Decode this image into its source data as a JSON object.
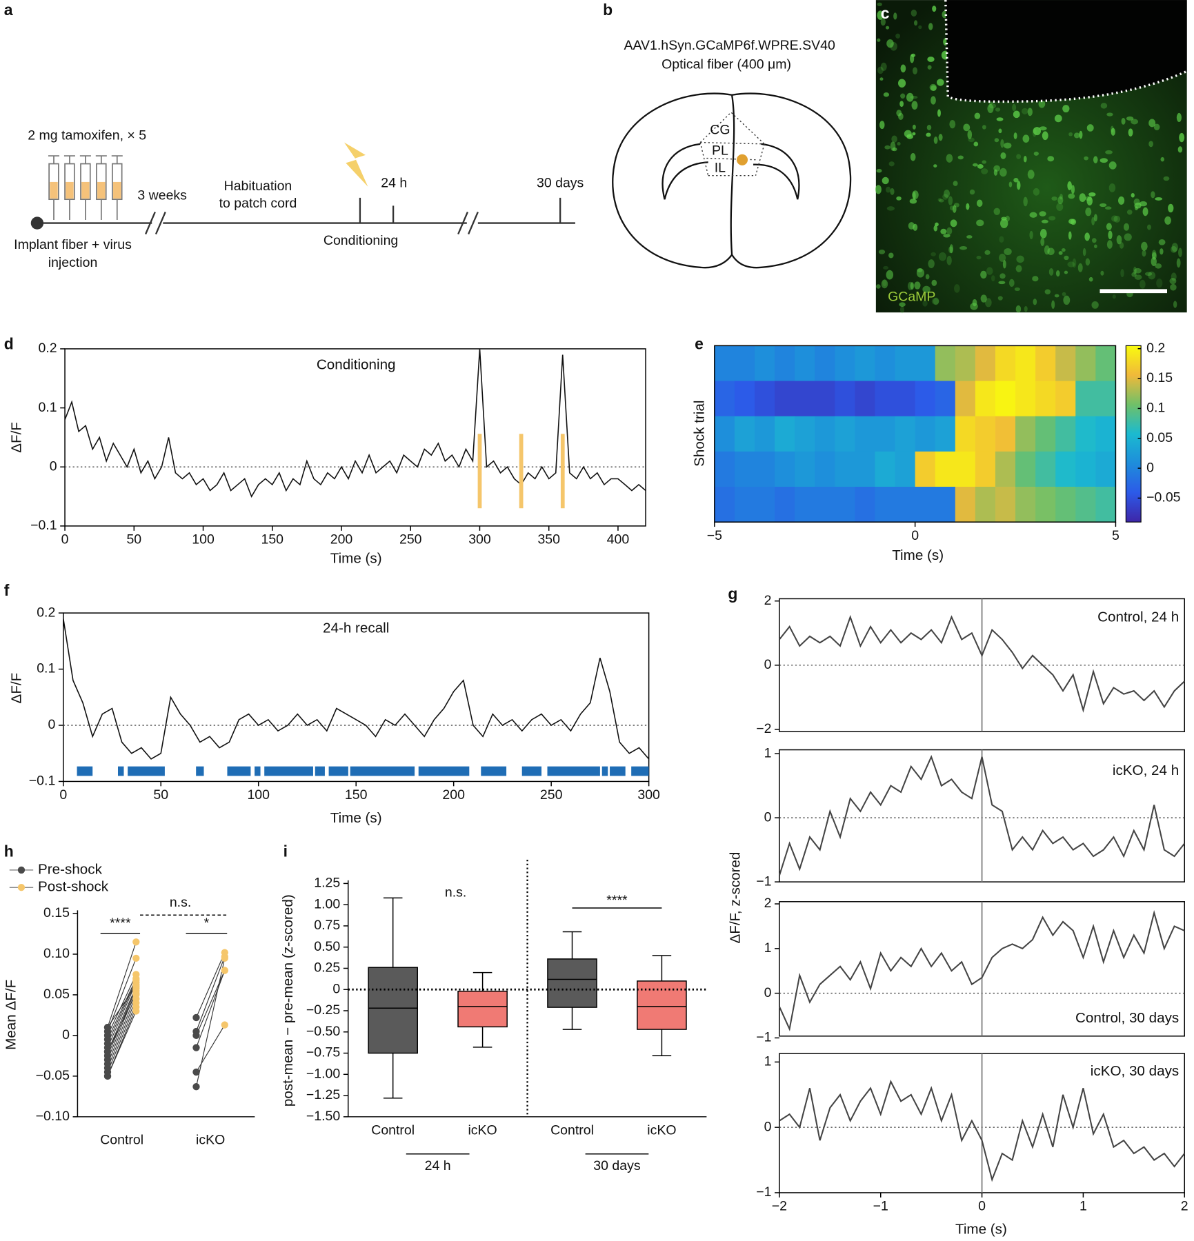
{
  "panel_a": {
    "label": "a",
    "dose": "2 mg tamoxifen, × 5",
    "gap": "3 weeks",
    "habituation": [
      "Habituation",
      "to patch cord"
    ],
    "t1": "24 h",
    "t2": "30 days",
    "conditioning": "Conditioning",
    "implant": [
      "Implant fiber + virus",
      "injection"
    ]
  },
  "panel_b": {
    "label": "b",
    "virus": "AAV1.hSyn.GCaMP6f.WPRE.SV40",
    "fiber": "Optical fiber (400 μm)",
    "regions": [
      "CG",
      "PL",
      "IL"
    ]
  },
  "panel_c": {
    "label": "c",
    "stain": "GCaMP"
  },
  "chart_data": [
    {
      "label": "d",
      "type": "line",
      "title": "Conditioning",
      "xlabel": "Time (s)",
      "ylabel": "ΔF/F",
      "x": [
        0,
        5,
        10,
        15,
        20,
        25,
        30,
        35,
        40,
        45,
        50,
        55,
        60,
        65,
        70,
        75,
        80,
        85,
        90,
        95,
        100,
        105,
        110,
        115,
        120,
        125,
        130,
        135,
        140,
        145,
        150,
        155,
        160,
        165,
        170,
        175,
        180,
        185,
        190,
        195,
        200,
        205,
        210,
        215,
        220,
        225,
        230,
        235,
        240,
        245,
        250,
        255,
        260,
        265,
        270,
        275,
        280,
        285,
        290,
        295,
        300,
        305,
        310,
        315,
        320,
        325,
        330,
        335,
        340,
        345,
        350,
        355,
        360,
        365,
        370,
        375,
        380,
        385,
        390,
        395,
        400,
        405,
        410,
        415,
        420
      ],
      "series": [
        {
          "color": "#111111",
          "values": [
            0.08,
            0.11,
            0.06,
            0.07,
            0.03,
            0.05,
            0.01,
            0.04,
            0.02,
            0,
            0.03,
            -0.01,
            0.01,
            -0.02,
            0,
            0.05,
            -0.01,
            -0.02,
            -0.01,
            -0.03,
            -0.02,
            -0.04,
            -0.03,
            -0.01,
            -0.04,
            -0.03,
            -0.02,
            -0.05,
            -0.03,
            -0.02,
            -0.03,
            -0.01,
            -0.04,
            -0.02,
            -0.03,
            0.01,
            -0.02,
            -0.03,
            -0.01,
            -0.02,
            0,
            -0.02,
            0.01,
            -0.01,
            0.02,
            -0.01,
            0,
            0.01,
            -0.01,
            0.02,
            0.01,
            0,
            0.03,
            0.02,
            0.04,
            0.01,
            0.02,
            0,
            0.03,
            0.01,
            0.2,
            0,
            0.01,
            -0.01,
            0,
            -0.02,
            -0.03,
            -0.01,
            -0.02,
            0,
            -0.02,
            -0.01,
            0.19,
            -0.01,
            -0.02,
            0,
            -0.02,
            -0.01,
            -0.03,
            -0.02,
            -0.02,
            -0.03,
            -0.04,
            -0.03,
            -0.04
          ]
        }
      ],
      "xlim": [
        0,
        420
      ],
      "ylim": [
        -0.1,
        0.2
      ],
      "xticks": [
        0,
        50,
        100,
        150,
        200,
        250,
        300,
        350,
        400
      ],
      "yticks": [
        {
          "value": -0.1,
          "label": "−0.1"
        },
        0,
        0.1,
        0.2
      ],
      "baseline": 0,
      "shocks": [
        300,
        330,
        360
      ],
      "shock_color": "#f5c66b"
    },
    {
      "label": "e",
      "type": "heatmap",
      "xlabel": "Time (s)",
      "ylabel": "Shock trial",
      "xlim": [
        -5,
        5
      ],
      "xticks": [
        {
          "value": -5,
          "label": "−5"
        },
        0,
        5
      ],
      "rows": [
        [
          0,
          0,
          0.01,
          0,
          0.01,
          0,
          0.01,
          0.02,
          0.01,
          0.02,
          0.02,
          0.12,
          0.13,
          0.15,
          0.18,
          0.19,
          0.17,
          0.14,
          0.12,
          0.1
        ],
        [
          -0.03,
          -0.04,
          -0.05,
          -0.06,
          -0.06,
          -0.06,
          -0.05,
          -0.06,
          -0.05,
          -0.05,
          -0.04,
          -0.03,
          0.15,
          0.19,
          0.2,
          0.19,
          0.18,
          0.17,
          0.08,
          0.08
        ],
        [
          0.01,
          0.03,
          0.02,
          0.04,
          0.03,
          0.02,
          0.03,
          0.02,
          0.02,
          0.03,
          0.02,
          0.03,
          0.18,
          0.17,
          0.16,
          0.12,
          0.1,
          0.08,
          0.06,
          0.05
        ],
        [
          -0.01,
          0,
          0,
          0.01,
          0.02,
          0.01,
          0.02,
          0.02,
          0.04,
          0.03,
          0.17,
          0.19,
          0.19,
          0.17,
          0.13,
          0.1,
          0.08,
          0.06,
          0.05,
          0.04
        ],
        [
          -0.02,
          -0.01,
          -0.01,
          -0.02,
          -0.01,
          -0.01,
          -0.01,
          -0.02,
          -0.01,
          -0.01,
          -0.01,
          -0.01,
          0.15,
          0.13,
          0.14,
          0.12,
          0.11,
          0.1,
          0.09,
          0.08
        ]
      ],
      "clim": [
        -0.09,
        0.205
      ],
      "cticks": [
        {
          "value": -0.05,
          "label": "−0.05"
        },
        0,
        0.05,
        0.1,
        0.15,
        0.2
      ],
      "colormap": [
        "#3e26a8",
        "#2c5ae8",
        "#1e8ddb",
        "#1bbad0",
        "#70c068",
        "#f0b93a",
        "#f9fb0e"
      ]
    },
    {
      "label": "f",
      "type": "line",
      "title": "24-h recall",
      "xlabel": "Time (s)",
      "ylabel": "ΔF/F",
      "x": [
        0,
        5,
        10,
        15,
        20,
        25,
        30,
        35,
        40,
        45,
        50,
        55,
        60,
        65,
        70,
        75,
        80,
        85,
        90,
        95,
        100,
        105,
        110,
        115,
        120,
        125,
        130,
        135,
        140,
        145,
        150,
        155,
        160,
        165,
        170,
        175,
        180,
        185,
        190,
        195,
        200,
        205,
        210,
        215,
        220,
        225,
        230,
        235,
        240,
        245,
        250,
        255,
        260,
        265,
        270,
        275,
        280,
        285,
        290,
        295,
        300
      ],
      "series": [
        {
          "color": "#111111",
          "values": [
            0.19,
            0.08,
            0.04,
            -0.02,
            0.02,
            0.03,
            -0.03,
            -0.05,
            -0.04,
            -0.06,
            -0.05,
            0.05,
            0.02,
            0,
            -0.03,
            -0.02,
            -0.04,
            -0.03,
            0.01,
            0.02,
            0,
            0.01,
            -0.01,
            0,
            0.02,
            0,
            0.01,
            -0.01,
            0.03,
            0.02,
            0.01,
            0,
            -0.02,
            0.01,
            0,
            0.02,
            0,
            -0.02,
            0.01,
            0.03,
            0.06,
            0.08,
            0,
            -0.02,
            0.02,
            0,
            0.01,
            -0.01,
            0.01,
            0.02,
            0,
            0.01,
            -0.01,
            0.02,
            0.04,
            0.12,
            0.06,
            -0.03,
            -0.05,
            -0.04,
            -0.06
          ]
        }
      ],
      "xlim": [
        0,
        300
      ],
      "ylim": [
        -0.1,
        0.2
      ],
      "xticks": [
        0,
        50,
        100,
        150,
        200,
        250,
        300
      ],
      "yticks": [
        {
          "value": -0.1,
          "label": "−0.1"
        },
        0,
        0.1,
        0.2
      ],
      "baseline": 0,
      "freezing": [
        [
          7,
          15
        ],
        [
          28,
          31
        ],
        [
          33,
          52
        ],
        [
          68,
          72
        ],
        [
          84,
          96
        ],
        [
          98,
          101
        ],
        [
          103,
          128
        ],
        [
          129,
          134
        ],
        [
          136,
          146
        ],
        [
          147,
          180
        ],
        [
          182,
          208
        ],
        [
          214,
          227
        ],
        [
          235,
          245
        ],
        [
          248,
          275
        ],
        [
          276,
          279
        ],
        [
          280,
          288
        ],
        [
          291,
          300
        ]
      ],
      "freezing_color": "#1f6db5"
    },
    {
      "label": "g",
      "type": "line-stack",
      "xlabel": "Time (s)",
      "ylabel": "ΔF/F, z-scored",
      "x": [
        -2,
        -1.9,
        -1.8,
        -1.7,
        -1.6,
        -1.5,
        -1.4,
        -1.3,
        -1.2,
        -1.1,
        -1,
        -0.9,
        -0.8,
        -0.7,
        -0.6,
        -0.5,
        -0.4,
        -0.3,
        -0.2,
        -0.1,
        0,
        0.1,
        0.2,
        0.3,
        0.4,
        0.5,
        0.6,
        0.7,
        0.8,
        0.9,
        1,
        1.1,
        1.2,
        1.3,
        1.4,
        1.5,
        1.6,
        1.7,
        1.8,
        1.9,
        2
      ],
      "xlim": [
        -2,
        2
      ],
      "xticks": [
        {
          "value": -2,
          "label": "−2"
        },
        {
          "value": -1,
          "label": "−1"
        },
        0,
        1,
        2
      ],
      "baseline": 0,
      "event_x": 0,
      "series": [
        {
          "name": "Control, 24 h",
          "color": "#444444",
          "ylim": [
            -2.07,
            2.07
          ],
          "yticks": [
            {
              "value": -2,
              "label": "−2"
            },
            0,
            2
          ],
          "values": [
            0.8,
            1.2,
            0.6,
            0.9,
            0.7,
            0.9,
            0.6,
            1.5,
            0.6,
            1.2,
            0.7,
            1.1,
            0.7,
            1.0,
            0.8,
            1.1,
            0.7,
            1.5,
            0.8,
            1.0,
            0.3,
            1.1,
            0.8,
            0.4,
            -0.1,
            0.3,
            0,
            -0.3,
            -0.8,
            -0.3,
            -1.4,
            -0.2,
            -1.2,
            -0.7,
            -0.9,
            -0.8,
            -1.1,
            -0.8,
            -1.3,
            -0.8,
            -0.5
          ]
        },
        {
          "name": "icKO, 24 h",
          "color": "#444444",
          "ylim": [
            -1,
            1.06
          ],
          "yticks": [
            {
              "value": -1,
              "label": "−1"
            },
            0,
            1
          ],
          "values": [
            -0.9,
            -0.4,
            -0.8,
            -0.3,
            -0.5,
            0.1,
            -0.3,
            0.3,
            0.1,
            0.4,
            0.2,
            0.5,
            0.4,
            0.8,
            0.6,
            0.95,
            0.5,
            0.6,
            0.4,
            0.3,
            0.95,
            0.2,
            0.1,
            -0.5,
            -0.3,
            -0.5,
            -0.2,
            -0.4,
            -0.3,
            -0.5,
            -0.4,
            -0.6,
            -0.5,
            -0.3,
            -0.6,
            -0.2,
            -0.5,
            0.2,
            -0.5,
            -0.6,
            -0.4
          ]
        },
        {
          "name": "Control, 30 days",
          "color": "#444444",
          "ylim": [
            -0.96,
            2.05
          ],
          "yticks": [
            {
              "value": -1,
              "label": "−1"
            },
            0,
            1,
            2
          ],
          "values": [
            -0.3,
            -0.8,
            0.4,
            -0.2,
            0.2,
            0.4,
            0.6,
            0.3,
            0.7,
            0.1,
            0.9,
            0.5,
            0.8,
            0.6,
            1.0,
            0.6,
            0.9,
            0.5,
            0.7,
            0.2,
            0.35,
            0.8,
            1.0,
            1.1,
            1.0,
            1.2,
            1.7,
            1.3,
            1.6,
            1.4,
            0.8,
            1.5,
            0.7,
            1.4,
            0.8,
            1.3,
            0.9,
            1.8,
            1.0,
            1.5,
            1.4
          ]
        },
        {
          "name": "icKO, 30 days",
          "color": "#444444",
          "ylim": [
            -1,
            1.13
          ],
          "yticks": [
            {
              "value": -1,
              "label": "−1"
            },
            0,
            1
          ],
          "values": [
            0.1,
            0.2,
            0,
            0.6,
            -0.2,
            0.3,
            0.5,
            0.1,
            0.4,
            0.6,
            0.2,
            0.7,
            0.4,
            0.5,
            0.2,
            0.6,
            0.1,
            0.5,
            -0.2,
            0.1,
            -0.2,
            -0.8,
            -0.4,
            -0.5,
            0.1,
            -0.3,
            0.2,
            -0.3,
            0.5,
            0,
            0.6,
            -0.1,
            0.2,
            -0.3,
            -0.2,
            -0.4,
            -0.3,
            -0.5,
            -0.4,
            -0.6,
            -0.4
          ]
        }
      ]
    },
    {
      "label": "h",
      "type": "paired-dot",
      "ylabel": "Mean ΔF/F",
      "categories": [
        "Control",
        "icKO"
      ],
      "series": [
        {
          "name": "Pre-shock",
          "color": "#4a4a4a",
          "values": [
            [
              0.01,
              0.005,
              0,
              -0.005,
              -0.01,
              -0.015,
              -0.02,
              -0.025,
              -0.03,
              -0.035,
              -0.04,
              -0.045,
              -0.05,
              -0.05,
              0.01,
              -0.02
            ],
            [
              0.022,
              0.005,
              0,
              -0.015,
              -0.045,
              -0.063
            ]
          ]
        },
        {
          "name": "Post-shock",
          "color": "#f5c66b",
          "values": [
            [
              0.115,
              0.095,
              0.075,
              0.07,
              0.068,
              0.065,
              0.06,
              0.058,
              0.055,
              0.05,
              0.045,
              0.04,
              0.035,
              0.03,
              0.062,
              0.052
            ],
            [
              0.102,
              0.097,
              0.08,
              0.08,
              0.013,
              0.095
            ]
          ]
        }
      ],
      "ylim": [
        -0.1,
        0.15
      ],
      "yticks": [
        {
          "value": -0.1,
          "label": "−0.10"
        },
        {
          "value": -0.05,
          "label": "−0.05"
        },
        0,
        0.05,
        {
          "value": 0.1,
          "label": "0.10"
        },
        0.15
      ],
      "annotations": [
        "****",
        "*",
        "n.s."
      ]
    },
    {
      "label": "i",
      "type": "box",
      "ylabel": "post-mean − pre-mean (z-scored)",
      "categories": [
        "Control",
        "icKO",
        "Control",
        "icKO"
      ],
      "groups": [
        "24 h",
        "30 days"
      ],
      "colors": [
        "#5a5a5a",
        "#f07a74",
        "#5a5a5a",
        "#f07a74"
      ],
      "boxes": [
        {
          "whisker_low": -1.28,
          "q1": -0.75,
          "median": -0.22,
          "q3": 0.26,
          "whisker_high": 1.08
        },
        {
          "whisker_low": -0.68,
          "q1": -0.44,
          "median": -0.2,
          "q3": -0.02,
          "whisker_high": 0.2
        },
        {
          "whisker_low": -0.47,
          "q1": -0.21,
          "median": 0.12,
          "q3": 0.36,
          "whisker_high": 0.68
        },
        {
          "whisker_low": -0.78,
          "q1": -0.47,
          "median": -0.2,
          "q3": 0.1,
          "whisker_high": 0.4
        }
      ],
      "ylim": [
        -1.5,
        1.25
      ],
      "yticks": [
        {
          "value": -1.5,
          "label": "−1.50"
        },
        {
          "value": -1.25,
          "label": "−1.25"
        },
        {
          "value": -1,
          "label": "−1.00"
        },
        {
          "value": -0.75,
          "label": "−0.75"
        },
        {
          "value": -0.5,
          "label": "−0.50"
        },
        {
          "value": -0.25,
          "label": "−0.25"
        },
        0,
        0.25,
        {
          "value": 0.5,
          "label": "0.50"
        },
        0.75,
        {
          "value": 1,
          "label": "1.00"
        },
        1.25
      ],
      "baseline": 0,
      "annotations": [
        "n.s.",
        "****"
      ]
    }
  ]
}
